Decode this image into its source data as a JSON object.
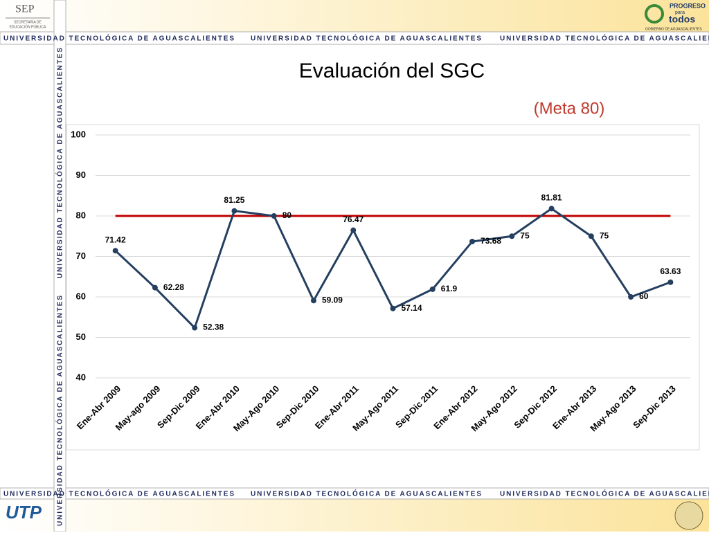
{
  "slide": {
    "banner": "UNIVERSIDAD TECNOLÓGICA DE AGUASCALIENTES",
    "sep": "SEP",
    "sep_sub": [
      "SECRETARÍA DE",
      "EDUCACIÓN PÚBLICA"
    ],
    "logo_right": [
      "PROGRESO",
      "para",
      "todos",
      "GOBIERNO DE AGUASCALIENTES"
    ],
    "logo_left": "UTP"
  },
  "chart_data": {
    "type": "line",
    "title": "Evaluación del SGC",
    "subtitle": "(Meta 80)",
    "categories": [
      "Ene-Abr 2009",
      "May-ago 2009",
      "Sep-Dic 2009",
      "Ene-Abr 2010",
      "May-Ago 2010",
      "Sep-Dic 2010",
      "Ene-Abr 2011",
      "May-Ago 2011",
      "Sep-Dic 2011",
      "Ene-Abr 2012",
      "May-Ago 2012",
      "Sep-Dic 2012",
      "Ene-Abr 2013",
      "May-Ago 2013",
      "Sep-Dic 2013"
    ],
    "values": [
      71.42,
      62.28,
      52.38,
      81.25,
      80,
      59.09,
      76.47,
      57.14,
      61.9,
      73.68,
      75,
      81.81,
      75,
      60,
      63.63
    ],
    "color": "#243f60",
    "target": 80,
    "target_color": "#c00000",
    "ylim": [
      40,
      100
    ],
    "yticks": [
      40,
      50,
      60,
      70,
      80,
      90,
      100
    ],
    "grid": true
  }
}
